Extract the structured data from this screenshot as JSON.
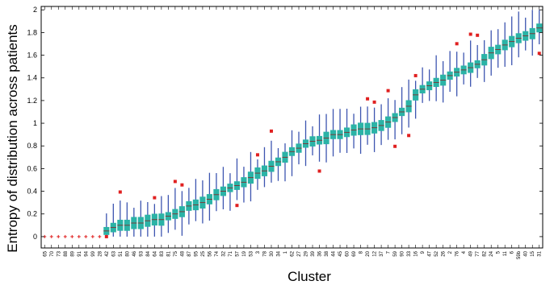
{
  "chart_data": {
    "type": "box",
    "xlabel": "Cluster",
    "ylabel": "Entropy of distribution across patients",
    "ylim": [
      -0.1,
      2.03
    ],
    "yticks": [
      0,
      0.2,
      0.4,
      0.6,
      0.8,
      1,
      1.2,
      1.4,
      1.6,
      1.8,
      2
    ],
    "ytick_labels": [
      "0",
      "0.2",
      "0.4",
      "0.6",
      "0.8",
      "1",
      "1.2",
      "1.4",
      "1.6",
      "1.8",
      "2"
    ],
    "grid": false,
    "colors": {
      "box": "#2bb3a6",
      "whisker": "#3d55b0",
      "outlier": "#e02020",
      "median": "#8a1f1f",
      "axis": "#000000"
    },
    "categories": [
      "65",
      "70",
      "73",
      "88",
      "89",
      "91",
      "94",
      "99",
      "28",
      "42",
      "63",
      "51",
      "80",
      "46",
      "93",
      "84",
      "64",
      "83",
      "81",
      "75",
      "48",
      "87",
      "95",
      "25",
      "56",
      "74",
      "32",
      "71",
      "57",
      "19",
      "53",
      "3",
      "78",
      "30",
      "34",
      "1",
      "62",
      "27",
      "29",
      "39",
      "36",
      "38",
      "44",
      "45",
      "60",
      "69",
      "8",
      "20",
      "12",
      "37",
      "7",
      "59",
      "90",
      "33",
      "16",
      "9",
      "47",
      "52",
      "26",
      "2",
      "76",
      "4",
      "49",
      "77",
      "82",
      "24",
      "5",
      "11",
      "6",
      "59b",
      "40",
      "15",
      "31"
    ],
    "medians": [
      0,
      0,
      0,
      0,
      0,
      0,
      0,
      0,
      0,
      0.05,
      0.08,
      0.1,
      0.1,
      0.12,
      0.12,
      0.14,
      0.15,
      0.15,
      0.18,
      0.2,
      0.22,
      0.27,
      0.28,
      0.3,
      0.33,
      0.37,
      0.4,
      0.43,
      0.45,
      0.48,
      0.52,
      0.56,
      0.58,
      0.62,
      0.66,
      0.7,
      0.75,
      0.78,
      0.82,
      0.84,
      0.85,
      0.87,
      0.9,
      0.9,
      0.92,
      0.94,
      0.95,
      0.95,
      0.96,
      0.98,
      1.01,
      1.05,
      1.1,
      1.15,
      1.25,
      1.3,
      1.33,
      1.36,
      1.38,
      1.42,
      1.45,
      1.47,
      1.49,
      1.52,
      1.56,
      1.62,
      1.65,
      1.69,
      1.72,
      1.75,
      1.77,
      1.79,
      1.84
    ]
  }
}
